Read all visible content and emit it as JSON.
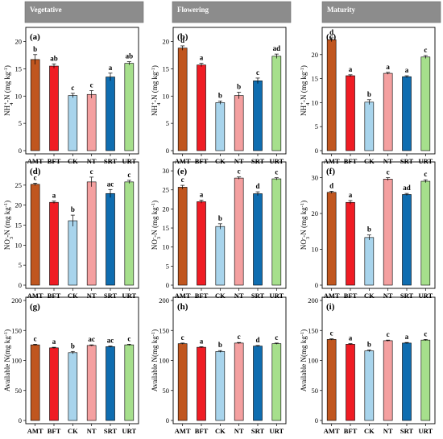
{
  "columns": [
    "Vegetative",
    "Flowering",
    "Maturity"
  ],
  "categories": [
    "AMT",
    "BFT",
    "CK",
    "NT",
    "SRT",
    "URT"
  ],
  "colors": {
    "AMT": "#c0561f",
    "BFT": "#ef1c24",
    "CK": "#a8d4ec",
    "NT": "#f4a0a0",
    "SRT": "#0f6db0",
    "URT": "#a6df8c"
  },
  "chart_data": [
    {
      "type": "bar",
      "panel": "(a)",
      "column": "Vegetative",
      "ylabel_main": "NH",
      "ylabel_sub": "4",
      "ylabel_sup": "+",
      "ylabel_rest": "-N (mg kg",
      "ylabel_unit_sup": "-1",
      "ylabel_end": ")",
      "yticks": [
        0,
        5,
        10,
        15,
        20
      ],
      "ylim": [
        0,
        22
      ],
      "values": [
        16.7,
        15.5,
        10.1,
        10.3,
        13.5,
        16.0
      ],
      "errors": [
        0.9,
        0.4,
        0.4,
        0.7,
        0.7,
        0.3
      ],
      "letters": [
        "b",
        "ab",
        "c",
        "c",
        "a",
        "ab"
      ]
    },
    {
      "type": "bar",
      "panel": "(b)",
      "column": "Flowering",
      "ylabel_main": "NH",
      "ylabel_sub": "4",
      "ylabel_sup": "+",
      "ylabel_rest": "-N (mg kg",
      "ylabel_unit_sup": "-1",
      "ylabel_end": ")",
      "yticks": [
        0,
        5,
        10,
        15,
        20
      ],
      "ylim": [
        0,
        22
      ],
      "values": [
        18.8,
        15.7,
        8.8,
        10.1,
        12.8,
        17.3
      ],
      "errors": [
        0.4,
        0.3,
        0.3,
        0.6,
        0.5,
        0.4
      ],
      "letters": [
        "d",
        "a",
        "b",
        "b",
        "c",
        "ad"
      ]
    },
    {
      "type": "bar",
      "panel": "(c)",
      "column": "Maturity",
      "ylabel_main": "NH",
      "ylabel_sub": "4",
      "ylabel_sup": "+",
      "ylabel_rest": "-N (mg kg",
      "ylabel_unit_sup": "-1",
      "ylabel_end": ")",
      "yticks": [
        0,
        5,
        10,
        15,
        20
      ],
      "ylim": [
        0,
        25
      ],
      "values": [
        23.1,
        15.6,
        10.1,
        16.1,
        15.4,
        19.5
      ],
      "errors": [
        0.4,
        0.2,
        0.5,
        0.2,
        0.2,
        0.3
      ],
      "letters": [
        "d",
        "a",
        "b",
        "a",
        "a",
        "c"
      ]
    },
    {
      "type": "bar",
      "panel": "(d)",
      "column": "Vegetative",
      "ylabel_main": "NO",
      "ylabel_sub": "3",
      "ylabel_sup": "-",
      "ylabel_rest": "-N (mg kg",
      "ylabel_unit_sup": "-1",
      "ylabel_end": ")",
      "yticks": [
        0,
        5,
        10,
        15,
        20,
        25
      ],
      "ylim": [
        0,
        30
      ],
      "values": [
        25.2,
        20.7,
        16.1,
        25.8,
        22.9,
        25.8
      ],
      "errors": [
        0.3,
        0.3,
        1.4,
        1.2,
        1.0,
        0.4
      ],
      "letters": [
        "c",
        "a",
        "b",
        "c",
        "ac",
        "c"
      ]
    },
    {
      "type": "bar",
      "panel": "(e)",
      "column": "Flowering",
      "ylabel_main": "NO",
      "ylabel_sub": "3",
      "ylabel_sup": "-",
      "ylabel_rest": "-N (mg kg",
      "ylabel_unit_sup": "-1",
      "ylabel_end": ")",
      "yticks": [
        0,
        5,
        10,
        15,
        20,
        25,
        30
      ],
      "ylim": [
        0,
        31.5
      ],
      "values": [
        25.7,
        21.9,
        15.4,
        28.1,
        24.0,
        27.9
      ],
      "errors": [
        0.5,
        0.4,
        0.7,
        0.3,
        0.5,
        0.3
      ],
      "letters": [
        "c",
        "a",
        "b",
        "c",
        "d",
        "c"
      ]
    },
    {
      "type": "bar",
      "panel": "(f)",
      "column": "Maturity",
      "ylabel_main": "NO",
      "ylabel_sub": "3",
      "ylabel_sup": "-",
      "ylabel_rest": "-N (mg kg",
      "ylabel_unit_sup": "-1",
      "ylabel_end": ")",
      "yticks": [
        0,
        10,
        20,
        30
      ],
      "ylim": [
        0,
        33.5
      ],
      "values": [
        25.9,
        23.1,
        13.3,
        29.6,
        25.3,
        29.0
      ],
      "errors": [
        0.3,
        0.5,
        0.7,
        0.4,
        0.3,
        0.4
      ],
      "letters": [
        "d",
        "a",
        "b",
        "c",
        "ad",
        "c"
      ]
    },
    {
      "type": "bar",
      "panel": "(g)",
      "column": "Vegetative",
      "ylabel_main": "Available N(mg kg",
      "ylabel_sub": "",
      "ylabel_sup": "",
      "ylabel_rest": "",
      "ylabel_unit_sup": "-1",
      "ylabel_end": ")",
      "yticks": [
        0,
        50,
        100,
        150,
        200
      ],
      "ylim": [
        0,
        200
      ],
      "values": [
        126,
        121,
        113,
        125,
        123,
        126
      ],
      "errors": [
        1.0,
        1.0,
        2.0,
        1.0,
        1.0,
        1.0
      ],
      "letters": [
        "c",
        "a",
        "b",
        "ac",
        "ac",
        "c"
      ]
    },
    {
      "type": "bar",
      "panel": "(h)",
      "column": "Flowering",
      "ylabel_main": "Available N(mg kg",
      "ylabel_sub": "",
      "ylabel_sup": "",
      "ylabel_rest": "",
      "ylabel_unit_sup": "-1",
      "ylabel_end": ")",
      "yticks": [
        0,
        50,
        100,
        150,
        200
      ],
      "ylim": [
        0,
        200
      ],
      "values": [
        128,
        122,
        115,
        129,
        124,
        128
      ],
      "errors": [
        1.0,
        1.0,
        1.5,
        1.0,
        1.0,
        1.0
      ],
      "letters": [
        "c",
        "a",
        "b",
        "c",
        "d",
        "c"
      ]
    },
    {
      "type": "bar",
      "panel": "(i)",
      "column": "Maturity",
      "ylabel_main": "Available N(mg kg",
      "ylabel_sub": "",
      "ylabel_sup": "",
      "ylabel_rest": "",
      "ylabel_unit_sup": "-1",
      "ylabel_end": ")",
      "yticks": [
        0,
        50,
        100,
        150,
        200
      ],
      "ylim": [
        0,
        200
      ],
      "values": [
        135,
        127,
        116,
        133,
        129,
        134
      ],
      "errors": [
        1.0,
        1.0,
        1.5,
        1.0,
        1.0,
        1.0
      ],
      "letters": [
        "c",
        "a",
        "b",
        "c",
        "a",
        "c"
      ]
    }
  ]
}
